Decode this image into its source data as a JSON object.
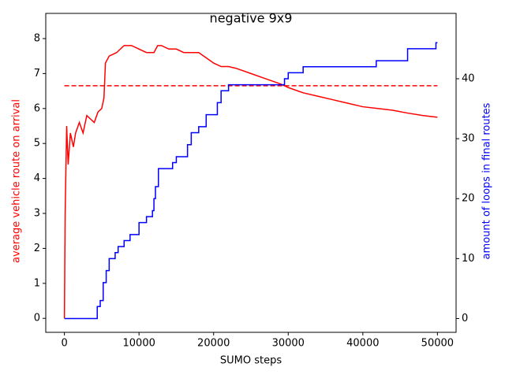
{
  "chart_data": {
    "type": "line",
    "title": "negative 9x9",
    "x_label": "SUMO steps",
    "y_label": "average vehicle route on arrival",
    "y2_label": "amount of loops in final routes",
    "xlim": [
      -2500,
      52500
    ],
    "xticks": [
      0,
      10000,
      20000,
      30000,
      40000,
      50000
    ],
    "ylim": [
      -0.4,
      8.72
    ],
    "yticks": [
      0,
      1,
      2,
      3,
      4,
      5,
      6,
      7,
      8
    ],
    "y2lim": [
      -2.3,
      50.9
    ],
    "y2ticks": [
      0,
      10,
      20,
      30,
      40
    ],
    "y_label_color": "#ff0000",
    "y2_label_color": "#0000ff",
    "series": [
      {
        "color": "#ff0000",
        "x": [
          0,
          100,
          300,
          500,
          800,
          1200,
          1500,
          2000,
          2500,
          3000,
          3500,
          4000,
          4500,
          5000,
          5300,
          5500,
          6000,
          7000,
          8000,
          9000,
          10000,
          11000,
          12000,
          12500,
          13000,
          14000,
          15000,
          16000,
          17000,
          18000,
          19000,
          20000,
          21000,
          22000,
          23000,
          25000,
          27000,
          29000,
          30000,
          32000,
          34000,
          36000,
          38000,
          40000,
          42000,
          44000,
          46000,
          48000,
          50000
        ],
        "values": [
          0,
          3,
          5.5,
          4.4,
          5.3,
          4.9,
          5.3,
          5.6,
          5.3,
          5.8,
          5.7,
          5.6,
          5.9,
          6.0,
          6.3,
          7.3,
          7.5,
          7.6,
          7.8,
          7.8,
          7.7,
          7.6,
          7.6,
          7.8,
          7.8,
          7.7,
          7.7,
          7.6,
          7.6,
          7.6,
          7.45,
          7.3,
          7.2,
          7.2,
          7.15,
          7.0,
          6.85,
          6.7,
          6.6,
          6.45,
          6.35,
          6.25,
          6.15,
          6.05,
          6.0,
          5.95,
          5.87,
          5.8,
          5.75
        ]
      },
      {
        "color": "#ff0000",
        "dash": true,
        "x": [
          0,
          50000
        ],
        "values": [
          6.65,
          6.65
        ]
      },
      {
        "color": "#0000ff",
        "axis": "y2",
        "x": [
          0,
          4400,
          4400,
          4800,
          4800,
          5200,
          5200,
          5600,
          5600,
          6000,
          6000,
          6800,
          6800,
          7200,
          7200,
          8000,
          8000,
          8800,
          8800,
          10000,
          10000,
          11000,
          11000,
          11800,
          11800,
          12000,
          12000,
          12200,
          12200,
          12600,
          12600,
          14500,
          14500,
          15000,
          15000,
          16500,
          16500,
          17000,
          17000,
          18000,
          18000,
          19000,
          19000,
          20500,
          20500,
          21000,
          21000,
          22000,
          22000,
          29500,
          29500,
          30000,
          30000,
          32000,
          32000,
          41800,
          41800,
          46000,
          46000,
          49800,
          49800,
          50000
        ],
        "values": [
          0,
          0,
          2,
          2,
          3,
          3,
          6,
          6,
          8,
          8,
          10,
          10,
          11,
          11,
          12,
          12,
          13,
          13,
          14,
          14,
          16,
          16,
          17,
          17,
          18,
          18,
          20,
          20,
          22,
          22,
          25,
          25,
          26,
          26,
          27,
          27,
          29,
          29,
          31,
          31,
          32,
          32,
          34,
          34,
          36,
          36,
          38,
          38,
          39,
          39,
          40,
          40,
          41,
          41,
          42,
          42,
          43,
          43,
          45,
          45,
          46,
          46
        ]
      }
    ]
  }
}
